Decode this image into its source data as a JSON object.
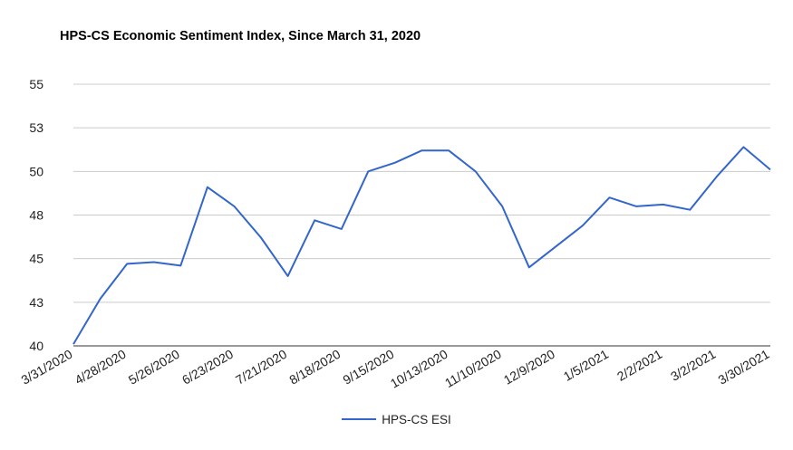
{
  "chart_data": {
    "type": "line",
    "title": "HPS-CS Economic Sentiment Index, Since March 31, 2020",
    "xlabel": "",
    "ylabel": "",
    "ylim": [
      40,
      55
    ],
    "yticks": [
      40,
      43,
      45,
      48,
      50,
      53,
      55
    ],
    "ytick_values": [
      40,
      42.5,
      45,
      47.5,
      50,
      52.5,
      55
    ],
    "x_tick_labels": [
      "3/31/2020",
      "4/28/2020",
      "5/26/2020",
      "6/23/2020",
      "7/21/2020",
      "8/18/2020",
      "9/15/2020",
      "10/13/2020",
      "11/10/2020",
      "12/9/2020",
      "1/5/2021",
      "2/2/2021",
      "3/2/2021",
      "3/30/2021"
    ],
    "x": [
      "3/31/2020",
      "4/14/2020",
      "4/28/2020",
      "5/12/2020",
      "5/26/2020",
      "6/9/2020",
      "6/23/2020",
      "7/7/2020",
      "7/21/2020",
      "8/4/2020",
      "8/18/2020",
      "9/1/2020",
      "9/15/2020",
      "9/29/2020",
      "10/13/2020",
      "10/27/2020",
      "11/10/2020",
      "11/24/2020",
      "12/9/2020",
      "12/22/2020",
      "1/5/2021",
      "1/19/2021",
      "2/2/2021",
      "2/16/2021",
      "3/2/2021",
      "3/16/2021",
      "3/30/2021"
    ],
    "series": [
      {
        "name": "HPS-CS ESI",
        "color": "#3366CC",
        "values": [
          40.1,
          42.7,
          44.7,
          44.8,
          44.6,
          49.1,
          48.0,
          46.2,
          44.0,
          47.2,
          46.7,
          50.0,
          50.5,
          51.2,
          51.2,
          50.0,
          48.0,
          44.5,
          45.7,
          46.9,
          48.5,
          48.0,
          48.1,
          47.8,
          49.7,
          51.4,
          50.1
        ]
      }
    ],
    "legend_position": "bottom",
    "grid": true,
    "colors": {
      "line": "#3366CC",
      "grid": "#cccccc",
      "axis": "#333333",
      "text": "#222222"
    }
  }
}
